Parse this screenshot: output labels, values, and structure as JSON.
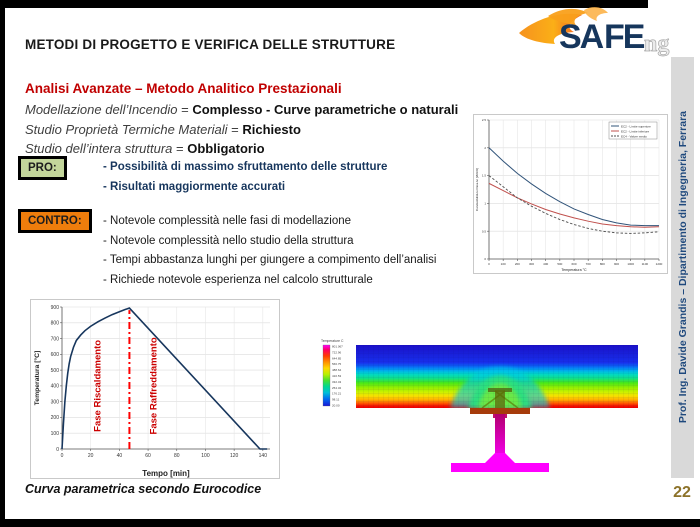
{
  "page": {
    "title": "METODI DI PROGETTO E VERIFICA DELLE STRUTTURE",
    "number": "22"
  },
  "logo": {
    "sa": "SA",
    "fe": "FE",
    "ng": "ng"
  },
  "sidebar": {
    "credit": "Prof. Ing. Davide Grandis – Dipartimento di Ingegneria, Ferrara"
  },
  "content": {
    "heading": "Analisi Avanzate – Metodo Analitico Prestazionali",
    "facts": [
      {
        "label": "Modellazione dell’Incendio",
        "sep": " = ",
        "value": "Complesso - Curve parametriche o naturali"
      },
      {
        "label": "Studio Proprietà Termiche Materiali",
        "sep": " = ",
        "value": "Richiesto"
      },
      {
        "label": "Studio dell’intera struttura",
        "sep": " = ",
        "value": "Obbligatorio"
      }
    ],
    "pro": {
      "label": "PRO:",
      "items": [
        "- Possibilità di massimo sfruttamento delle strutture",
        "- Risultati maggiormente accurati"
      ]
    },
    "contro": {
      "label": "CONTRO:",
      "items": [
        "- Notevole complessità nelle fasi di modellazione",
        "- Notevole complessità nello studio della struttura",
        "- Tempi abbastanza lunghi per giungere a compimento dell’analisi",
        "- Richiede notevole esperienza nel calcolo strutturale"
      ]
    },
    "caption": "Curva parametrica secondo Eurocodice"
  },
  "thermal": {
    "title": "Temperature C",
    "legend_values": [
      "801.067",
      "722.96",
      "644.85",
      "566.75",
      "488.64",
      "410.53",
      "332.43",
      "254.32",
      "176.21",
      "98.11",
      "20.00"
    ]
  },
  "colors": {
    "heading_red": "#c00000",
    "pro_green": "#c3d69b",
    "contro_orange": "#ee7d0c",
    "pro_text_blue": "#17365d",
    "sidebar_blue": "#1f497d",
    "sidebar_gray": "#d9d9d9",
    "page_number_gold": "#8c7229",
    "curve_navy": "#17365d",
    "annotation_red": "#cc0000",
    "steel_magenta": "#ff00ff"
  },
  "chart_data": [
    {
      "type": "line",
      "title": "Curva parametrica secondo Eurocodice",
      "xlabel": "Tempo [min]",
      "ylabel": "Temperatura [°C]",
      "xlim": [
        0,
        145
      ],
      "ylim": [
        0,
        900
      ],
      "xticks": [
        0,
        20,
        40,
        60,
        80,
        100,
        120,
        140
      ],
      "yticks": [
        0,
        100,
        200,
        300,
        400,
        500,
        600,
        700,
        800,
        900
      ],
      "grid_x": true,
      "grid_y": true,
      "tick_font": 5,
      "label_font": 8,
      "label_weight": "bold",
      "ylabel_x": 9,
      "margins": {
        "l": 32,
        "r": 10,
        "t": 8,
        "b": 30
      },
      "series": [
        {
          "name": "curva parametrica incendio",
          "color": "#17365d",
          "width": 1.6,
          "points": [
            [
              0,
              0
            ],
            [
              1,
              160
            ],
            [
              2,
              300
            ],
            [
              3,
              400
            ],
            [
              4,
              480
            ],
            [
              5,
              540
            ],
            [
              6,
              585
            ],
            [
              8,
              645
            ],
            [
              10,
              688
            ],
            [
              13,
              722
            ],
            [
              16,
              750
            ],
            [
              20,
              778
            ],
            [
              25,
              806
            ],
            [
              30,
              830
            ],
            [
              35,
              852
            ],
            [
              40,
              870
            ],
            [
              44,
              884
            ],
            [
              47,
              893
            ],
            [
              138,
              0
            ],
            [
              143,
              0
            ]
          ]
        }
      ],
      "annotations": [
        {
          "type": "vline",
          "x": 47,
          "y0": 0,
          "y1": 880,
          "color": "#ff0000",
          "width": 2,
          "dash": "7 3 2 3"
        },
        {
          "type": "vtext",
          "x": 27,
          "y": 400,
          "text": "Fase Riscaldamento",
          "color": "#cc0000",
          "size": 9.5
        },
        {
          "type": "vtext",
          "x": 66,
          "y": 400,
          "text": "Fase Raffreddamento",
          "color": "#cc0000",
          "size": 9.5
        }
      ]
    },
    {
      "type": "line",
      "title": "Conducibilità termica del calcestruzzo",
      "xlabel": "Temperatura °C",
      "ylabel": "Conducibilità termica λc [W/mK]",
      "xlim": [
        0,
        1200
      ],
      "ylim": [
        0,
        2.5
      ],
      "xticks": [
        0,
        100,
        200,
        300,
        400,
        500,
        600,
        700,
        800,
        900,
        1000,
        1100,
        1200
      ],
      "yticks": [
        0,
        0.5,
        1,
        1.5,
        2,
        2.5
      ],
      "grid_x": true,
      "grid_y": true,
      "tick_font": 3,
      "label_font": 3.6,
      "label_weight": "normal",
      "ylabel_x": 5,
      "margins": {
        "l": 16,
        "r": 9,
        "t": 6,
        "b": 15
      },
      "legend": {
        "w": 48,
        "h": 17,
        "position": "top-right"
      },
      "series": [
        {
          "name": "EC2 - Limite superiore",
          "color": "#31547a",
          "width": 1,
          "points": [
            [
              0,
              2.0
            ],
            [
              100,
              1.76
            ],
            [
              200,
              1.54
            ],
            [
              300,
              1.35
            ],
            [
              400,
              1.18
            ],
            [
              500,
              1.03
            ],
            [
              600,
              0.9
            ],
            [
              700,
              0.8
            ],
            [
              800,
              0.71
            ],
            [
              900,
              0.65
            ],
            [
              1000,
              0.61
            ],
            [
              1100,
              0.6
            ],
            [
              1200,
              0.6
            ]
          ]
        },
        {
          "name": "EC2 - Limite inferiore",
          "color": "#c0504d",
          "width": 1,
          "points": [
            [
              0,
              1.36
            ],
            [
              100,
              1.23
            ],
            [
              200,
              1.1
            ],
            [
              300,
              0.99
            ],
            [
              400,
              0.89
            ],
            [
              500,
              0.81
            ],
            [
              600,
              0.74
            ],
            [
              700,
              0.68
            ],
            [
              800,
              0.63
            ],
            [
              900,
              0.6
            ],
            [
              1000,
              0.58
            ],
            [
              1100,
              0.57
            ],
            [
              1200,
              0.58
            ]
          ]
        },
        {
          "name": "EC4 - Valore medio",
          "color": "#4d4d4d",
          "width": 0.9,
          "dash": "2.5 1.8",
          "points": [
            [
              0,
              1.5
            ],
            [
              100,
              1.3
            ],
            [
              200,
              1.1
            ],
            [
              300,
              0.95
            ],
            [
              400,
              0.82
            ],
            [
              500,
              0.71
            ],
            [
              600,
              0.62
            ],
            [
              700,
              0.55
            ],
            [
              800,
              0.5
            ],
            [
              900,
              0.47
            ],
            [
              1000,
              0.46
            ],
            [
              1100,
              0.47
            ],
            [
              1200,
              0.49
            ]
          ]
        }
      ]
    }
  ]
}
